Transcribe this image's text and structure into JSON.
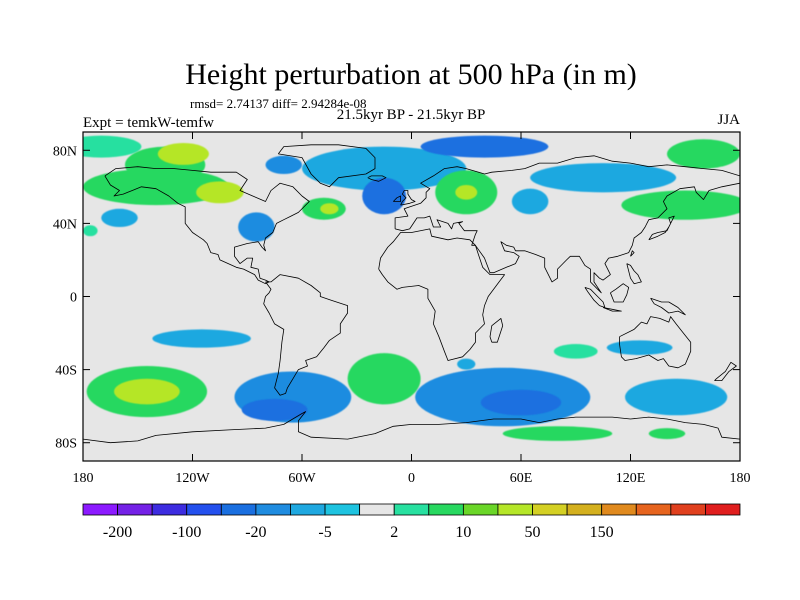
{
  "chart_data": {
    "type": "heatmap",
    "title": "Height perturbation at 500 hPa (in m)",
    "stats_text": "rmsd= 2.74137 diff= 2.94284e-08",
    "subtitle": "21.5kyr BP - 21.5kyr BP",
    "left_label": "Expt = temkW-temfw",
    "right_label": "JJA",
    "x_range": [
      -180,
      180
    ],
    "y_range": [
      -90,
      90
    ],
    "y_ticks": [
      {
        "value": 80,
        "label": "80N"
      },
      {
        "value": 40,
        "label": "40N"
      },
      {
        "value": 0,
        "label": "0"
      },
      {
        "value": -40,
        "label": "40S"
      },
      {
        "value": -80,
        "label": "80S"
      }
    ],
    "x_ticks": [
      {
        "value": -180,
        "label": "180"
      },
      {
        "value": -120,
        "label": "120W"
      },
      {
        "value": -60,
        "label": "60W"
      },
      {
        "value": 0,
        "label": "0"
      },
      {
        "value": 60,
        "label": "60E"
      },
      {
        "value": 120,
        "label": "120E"
      },
      {
        "value": 180,
        "label": "180"
      }
    ],
    "colorbar": {
      "colors": [
        "#8c1aff",
        "#7421e6",
        "#3d2ce0",
        "#2450ee",
        "#1a6fe0",
        "#1f8ce0",
        "#1fa8e0",
        "#1ec3e0",
        "#e6e6e6",
        "#28e0a0",
        "#28d860",
        "#6ad628",
        "#b5e628",
        "#d4d024",
        "#d4b01e",
        "#e08a1e",
        "#e6641e",
        "#e0401e",
        "#e01e1e"
      ],
      "labels": [
        "-200",
        "-100",
        "-20",
        "-5",
        "2",
        "10",
        "50",
        "150"
      ],
      "label_index": [
        1,
        3,
        5,
        7,
        9,
        11,
        13,
        15
      ]
    },
    "regions": [
      {
        "lon": -170,
        "lat": 82,
        "rx": 22,
        "ry": 6,
        "value": 2
      },
      {
        "lon": -135,
        "lat": 72,
        "rx": 22,
        "ry": 10,
        "value": 8
      },
      {
        "lon": -125,
        "lat": 78,
        "rx": 14,
        "ry": 6,
        "value": 20
      },
      {
        "lon": -140,
        "lat": 60,
        "rx": 40,
        "ry": 10,
        "value": 5
      },
      {
        "lon": -105,
        "lat": 57,
        "rx": 13,
        "ry": 6,
        "value": 20
      },
      {
        "lon": -70,
        "lat": 72,
        "rx": 10,
        "ry": 5,
        "value": -5
      },
      {
        "lon": -160,
        "lat": 43,
        "rx": 10,
        "ry": 5,
        "value": -3
      },
      {
        "lon": -176,
        "lat": 36,
        "rx": 4,
        "ry": 3,
        "value": 3
      },
      {
        "lon": -85,
        "lat": 38,
        "rx": 10,
        "ry": 8,
        "value": -8
      },
      {
        "lon": -48,
        "lat": 48,
        "rx": 12,
        "ry": 6,
        "value": 5
      },
      {
        "lon": -45,
        "lat": 48,
        "rx": 5,
        "ry": 3,
        "value": 20
      },
      {
        "lon": -15,
        "lat": 70,
        "rx": 45,
        "ry": 12,
        "value": -4
      },
      {
        "lon": -15,
        "lat": 55,
        "rx": 12,
        "ry": 10,
        "value": -12
      },
      {
        "lon": 30,
        "lat": 57,
        "rx": 17,
        "ry": 12,
        "value": 6
      },
      {
        "lon": 30,
        "lat": 57,
        "rx": 6,
        "ry": 4,
        "value": 20
      },
      {
        "lon": 40,
        "lat": 82,
        "rx": 35,
        "ry": 6,
        "value": -10
      },
      {
        "lon": 65,
        "lat": 52,
        "rx": 10,
        "ry": 7,
        "value": -4
      },
      {
        "lon": 105,
        "lat": 65,
        "rx": 40,
        "ry": 8,
        "value": -4
      },
      {
        "lon": 150,
        "lat": 50,
        "rx": 35,
        "ry": 8,
        "value": 6
      },
      {
        "lon": 160,
        "lat": 78,
        "rx": 20,
        "ry": 8,
        "value": 6
      },
      {
        "lon": -115,
        "lat": -23,
        "rx": 27,
        "ry": 5,
        "value": -4
      },
      {
        "lon": -145,
        "lat": -52,
        "rx": 33,
        "ry": 14,
        "value": 6
      },
      {
        "lon": -145,
        "lat": -52,
        "rx": 18,
        "ry": 7,
        "value": 20
      },
      {
        "lon": -65,
        "lat": -55,
        "rx": 32,
        "ry": 14,
        "value": -6
      },
      {
        "lon": -75,
        "lat": -62,
        "rx": 18,
        "ry": 6,
        "value": -15
      },
      {
        "lon": -15,
        "lat": -45,
        "rx": 20,
        "ry": 14,
        "value": 6
      },
      {
        "lon": 50,
        "lat": -55,
        "rx": 48,
        "ry": 16,
        "value": -5
      },
      {
        "lon": 60,
        "lat": -58,
        "rx": 22,
        "ry": 7,
        "value": -15
      },
      {
        "lon": 145,
        "lat": -55,
        "rx": 28,
        "ry": 10,
        "value": -4
      },
      {
        "lon": 125,
        "lat": -28,
        "rx": 18,
        "ry": 4,
        "value": -3
      },
      {
        "lon": 80,
        "lat": -75,
        "rx": 30,
        "ry": 4,
        "value": 5
      },
      {
        "lon": 140,
        "lat": -75,
        "rx": 10,
        "ry": 3,
        "value": 5
      },
      {
        "lon": 30,
        "lat": -37,
        "rx": 5,
        "ry": 3,
        "value": -3
      },
      {
        "lon": 90,
        "lat": -30,
        "rx": 12,
        "ry": 4,
        "value": 4
      }
    ],
    "coastlines": [
      "-168,66 -162,70 -150,71 -140,70 -130,70 -120,69 -110,68 -96,68 -90,64 -94,58 -87,55 -80,52 -77,58 -72,62 -65,60 -60,55 -56,52 -62,46 -66,44 -70,42 -74,40 -76,35 -80,32 -81,28 -80,25 -82,27 -84,30 -90,29 -97,27 -97,22 -94,18 -90,21 -87,21 -88,16 -84,15 -83,10 -80,9 -78,8 -80,7 -84,9 -86,12 -92,15 -96,16 -105,20 -106,23 -110,24 -112,29 -114,31 -117,33 -120,35 -124,40 -124,46 -124,49 -128,51 -133,55 -140,59 -148,60 -153,58 -158,56 -163,55 -160,58 -165,61 -168,66",
      "-80,8 -77,8 -72,12 -62,10 -55,6 -50,2 -50,0 -44,-2 -35,-5 -35,-9 -39,-15 -39,-20 -45,-24 -48,-28 -52,-33 -58,-35 -57,-38 -62,-40 -65,-45 -68,-50 -69,-53 -72,-54 -75,-50 -73,-42 -72,-35 -71,-25 -70,-18 -75,-15 -78,-9 -81,-4 -80,0 -78,2 -77,4 -80,8",
      "-73,78 -70,82 -55,83 -40,83 -25,81 -20,76 -20,70 -25,67 -40,65 -45,60 -50,62 -55,67 -60,76 -73,78",
      "-18,15 -17,21 -13,27 -10,30 -6,35 0,35 10,37 11,33 20,31 25,32 32,31 35,28 37,22 39,16 43,12 51,12 48,8 42,0 40,-5 39,-10 40,-15 35,-20 35,-25 32,-29 28,-33 20,-35 18,-30 15,-22 12,-15 13,-8 9,-1 9,4 4,6 -5,5 -8,4 -13,8 -16,12 -18,15",
      "-9,37 -9,43 -2,44 -4,48 -1,49 5,51 8,54 8,57 10,59 5,62 12,66 18,70 25,71 30,70 40,67 44,68 55,69 62,70 70,73 80,73 90,76 100,77 110,74 120,73 130,71 140,72 150,71 160,70 170,69 180,66",
      "180,62 170,60 163,58 160,53 156,57 155,60 147,59 140,55 138,52 140,48 135,43 130,42 128,38 126,35 122,32 121,28 119,24 113,22 108,21 106,18 109,12 105,9 103,10 100,13 100,8 104,2 102,4 98,8 98,15 95,17 92,22 87,22 85,20 80,15 80,10 77,8 73,16 73,21 68,23 62,25 57,25 56,27 52,28 49,30 51,25 56,24 59,22 57,18 52,16 45,13 43,13 40,21 35,28 33,28 34,31 35,34 36,36 29,36 26,40 28,41 23,40 22,37 20,40 14,42 16,38 12,38 10,44 7,43 3,43 -1,37 -5,36 -9,37",
      "-6,50 -5,52 -3,54 -5,56 -4,58 -2,58 -2,56 0,53 2,52 -1,51 -6,50",
      "-10,52 -8,54 -6,55 -6,52 -10,52",
      "-24,65 -22,66 -16,66 -14,65 -18,63 -22,64 -24,65",
      "114,-22 114,-26 115,-33 117,-35 123,-34 130,-32 135,-35 138,-34 141,-38 146,-39 150,-37 153,-30 153,-25 149,-20 145,-15 142,-11 141,-14 136,-12 131,-11 129,-15 126,-14 122,-18 114,-22",
      "44,-25 47,-25 50,-16 49,-12 44,-16 43,-22 44,-25",
      "95,5 98,4 102,0 105,-3 106,-6 103,-5 100,-2 97,2 95,5",
      "105,-6 110,-7 115,-8 110,-8 105,-6",
      "109,2 112,4 116,7 119,5 118,1 116,-3 111,-3 109,2",
      "131,-1 137,-3 141,-3 146,-6 150,-10 146,-8 141,-9 137,-6 133,-4 131,-1",
      "130,31 132,34 135,35 140,36 142,40 141,43 144,44 143,42 141,38 139,35 135,33 130,31",
      "120,22 121,25 122,24 120,22",
      "118,18 120,17 122,14 124,12 126,8 122,7 120,10 118,18",
      "166,-46 170,-46 174,-41 178,-38 175,-36 172,-41 167,-45 166,-46",
      "-180,-78 -165,-80 -150,-79 -140,-76 -120,-74 -100,-73 -80,-72 -70,-70 -60,-64 -58,-63 -62,-68 -62,-74 -55,-77 -35,-78 -20,-75 -10,-71 0,-70 15,-70 30,-69 45,-67 60,-67 70,-69 80,-67 90,-66 100,-66 110,-66 120,-67 130,-66 140,-67 150,-69 160,-70 168,-72 170,-77 180,-78"
    ]
  }
}
